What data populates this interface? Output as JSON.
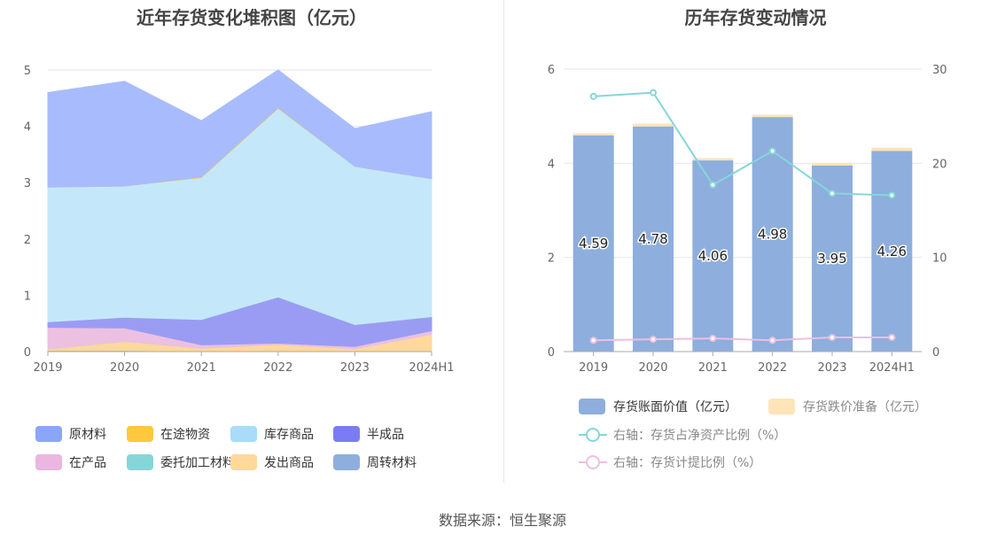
{
  "footer": "数据来源：恒生聚源",
  "chart_data": [
    {
      "type": "area",
      "title": "近年存货变化堆积图（亿元）",
      "categories": [
        "2019",
        "2020",
        "2021",
        "2022",
        "2023",
        "2024H1"
      ],
      "ylim": [
        0,
        5
      ],
      "yticks": [
        "0",
        "1",
        "2",
        "3",
        "4",
        "5"
      ],
      "stacked": true,
      "grid": true,
      "legend_position": "bottom",
      "series": [
        {
          "name": "周转材料",
          "color": "#8eaedd",
          "values": [
            0.02,
            0.02,
            0.01,
            0.01,
            0.01,
            0.01
          ]
        },
        {
          "name": "发出商品",
          "color": "#ffd89b",
          "values": [
            0.03,
            0.16,
            0.05,
            0.12,
            0.04,
            0.3
          ]
        },
        {
          "name": "委托加工材料",
          "color": "#86d6d9",
          "values": [
            0.0,
            0.0,
            0.0,
            0.0,
            0.0,
            0.0
          ]
        },
        {
          "name": "在产品",
          "color": "#ecc0e0",
          "values": [
            0.38,
            0.24,
            0.06,
            0.02,
            0.04,
            0.06
          ]
        },
        {
          "name": "半成品",
          "color": "#9a9cf4",
          "values": [
            0.1,
            0.19,
            0.45,
            0.82,
            0.39,
            0.25
          ]
        },
        {
          "name": "库存商品",
          "color": "#c4e8fa",
          "values": [
            2.39,
            2.33,
            2.52,
            3.35,
            2.81,
            2.45
          ]
        },
        {
          "name": "在途物资",
          "color": "#ffc83d",
          "values": [
            0.0,
            0.0,
            0.01,
            0.01,
            0.0,
            0.0
          ]
        },
        {
          "name": "原材料",
          "color": "#a8bcfd",
          "values": [
            1.68,
            1.86,
            1.0,
            0.67,
            0.67,
            1.19
          ]
        }
      ],
      "legend": [
        {
          "name": "原材料",
          "color": "#8aa6fb"
        },
        {
          "name": "在途物资",
          "color": "#ffc83d"
        },
        {
          "name": "库存商品",
          "color": "#a8dcf8"
        },
        {
          "name": "半成品",
          "color": "#7b7cf3"
        },
        {
          "name": "在产品",
          "color": "#ebb6df"
        },
        {
          "name": "委托加工材料",
          "color": "#86d6d9"
        },
        {
          "name": "发出商品",
          "color": "#ffd89b"
        },
        {
          "name": "周转材料",
          "color": "#8eaedd"
        }
      ]
    },
    {
      "type": "bar",
      "title": "历年存货变动情况",
      "categories": [
        "2019",
        "2020",
        "2021",
        "2022",
        "2023",
        "2024H1"
      ],
      "ylim": [
        0,
        6
      ],
      "yticks": [
        "0",
        "2",
        "4",
        "6"
      ],
      "y2lim": [
        0,
        30
      ],
      "y2ticks": [
        "0",
        "10",
        "20",
        "30"
      ],
      "grid": true,
      "legend_position": "bottom",
      "bar_series": [
        {
          "name": "存货账面价值（亿元）",
          "color": "#8eaedd",
          "values": [
            4.59,
            4.78,
            4.06,
            4.98,
            3.95,
            4.26
          ],
          "labels": [
            "4.59",
            "4.78",
            "4.06",
            "4.98",
            "3.95",
            "4.26"
          ]
        },
        {
          "name": "存货跌价准备（亿元）",
          "color": "#ffe4b8",
          "values": [
            0.05,
            0.06,
            0.05,
            0.05,
            0.06,
            0.07
          ]
        }
      ],
      "line_series": [
        {
          "name": "右轴：存货占净资产比例（%）",
          "color": "#86d6d9",
          "values": [
            27.1,
            27.5,
            17.7,
            21.3,
            16.8,
            16.6
          ]
        },
        {
          "name": "右轴：存货计提比例（%）",
          "color": "#ecc0e0",
          "values": [
            1.2,
            1.3,
            1.4,
            1.2,
            1.5,
            1.5
          ]
        }
      ]
    }
  ]
}
